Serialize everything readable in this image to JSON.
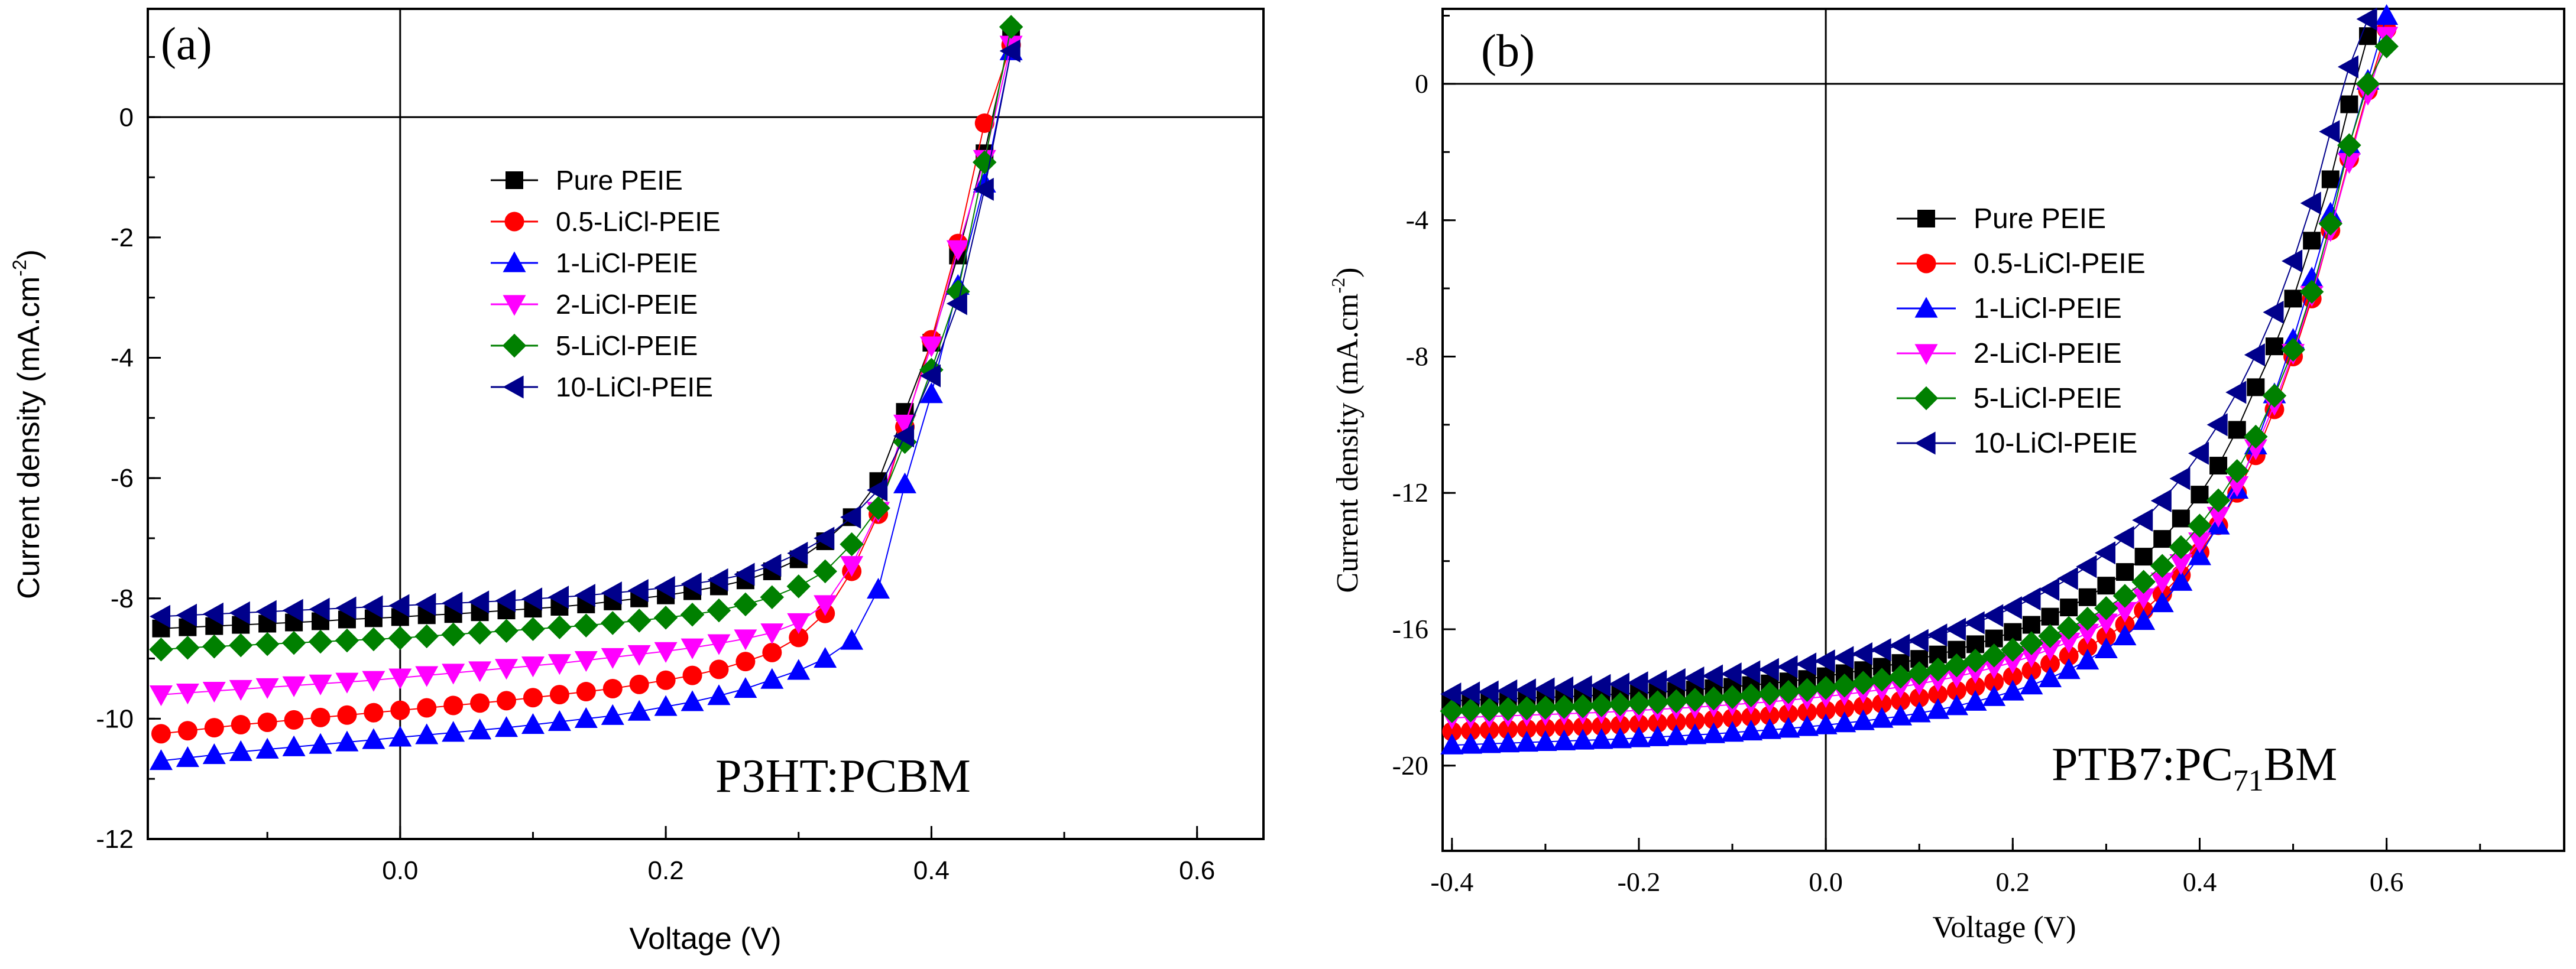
{
  "chart_data": [
    {
      "type": "line",
      "panel_label": "(a)",
      "annotation": "P3HT:PCBM",
      "xlabel": "Voltage (V)",
      "ylabel": "Current density (mA.cm",
      "ylabel_sup": "-2",
      "ylabel_close": ")",
      "xlim": [
        -0.19,
        0.65
      ],
      "ylim": [
        -12,
        1.8
      ],
      "xticks": [
        0.0,
        0.2,
        0.4,
        0.6
      ],
      "xtick_labels": [
        "0.0",
        "0.2",
        "0.4",
        "0.6"
      ],
      "yticks": [
        0,
        -2,
        -4,
        -6,
        -8,
        -10,
        -12
      ],
      "ytick_labels": [
        "0",
        "-2",
        "-4",
        "-6",
        "-8",
        "-10",
        "-12"
      ],
      "x_start": -0.18,
      "x_step": 0.02,
      "series": [
        {
          "name": "Pure PEIE",
          "marker": "square",
          "color": "#000000",
          "values": [
            -8.5,
            -8.48,
            -8.46,
            -8.44,
            -8.42,
            -8.4,
            -8.38,
            -8.35,
            -8.33,
            -8.31,
            -8.28,
            -8.26,
            -8.23,
            -8.2,
            -8.17,
            -8.14,
            -8.1,
            -8.05,
            -8.0,
            -7.95,
            -7.88,
            -7.8,
            -7.7,
            -7.55,
            -7.35,
            -7.05,
            -6.65,
            -6.05,
            -4.9,
            -3.75,
            -2.3,
            -0.6,
            1.4
          ]
        },
        {
          "name": "0.5-LiCl-PEIE",
          "marker": "circle",
          "color": "#ff0000",
          "values": [
            -10.25,
            -10.2,
            -10.15,
            -10.1,
            -10.06,
            -10.02,
            -9.98,
            -9.94,
            -9.9,
            -9.86,
            -9.82,
            -9.78,
            -9.74,
            -9.7,
            -9.65,
            -9.6,
            -9.55,
            -9.5,
            -9.43,
            -9.36,
            -9.28,
            -9.18,
            -9.05,
            -8.9,
            -8.65,
            -8.25,
            -7.55,
            -6.6,
            -5.15,
            -3.7,
            -2.1,
            -0.1,
            1.2
          ]
        },
        {
          "name": "1-LiCl-PEIE",
          "marker": "tri-up",
          "color": "#0000ff",
          "values": [
            -10.7,
            -10.65,
            -10.6,
            -10.55,
            -10.51,
            -10.47,
            -10.43,
            -10.39,
            -10.35,
            -10.31,
            -10.27,
            -10.23,
            -10.19,
            -10.15,
            -10.1,
            -10.05,
            -10.0,
            -9.95,
            -9.88,
            -9.8,
            -9.72,
            -9.62,
            -9.5,
            -9.35,
            -9.2,
            -9.0,
            -8.7,
            -7.85,
            -6.1,
            -4.6,
            -2.8,
            -1.1,
            1.1
          ]
        },
        {
          "name": "2-LiCl-PEIE",
          "marker": "tri-down",
          "color": "#ff00ff",
          "values": [
            -9.6,
            -9.57,
            -9.54,
            -9.51,
            -9.48,
            -9.45,
            -9.42,
            -9.39,
            -9.36,
            -9.32,
            -9.28,
            -9.24,
            -9.2,
            -9.16,
            -9.12,
            -9.08,
            -9.03,
            -8.98,
            -8.93,
            -8.88,
            -8.82,
            -8.75,
            -8.67,
            -8.57,
            -8.4,
            -8.1,
            -7.45,
            -6.55,
            -5.1,
            -3.8,
            -2.2,
            -0.7,
            1.2
          ]
        },
        {
          "name": "5-LiCl-PEIE",
          "marker": "diamond",
          "color": "#008000",
          "values": [
            -8.85,
            -8.82,
            -8.8,
            -8.78,
            -8.76,
            -8.74,
            -8.72,
            -8.7,
            -8.68,
            -8.66,
            -8.63,
            -8.6,
            -8.57,
            -8.54,
            -8.51,
            -8.48,
            -8.45,
            -8.41,
            -8.37,
            -8.32,
            -8.27,
            -8.2,
            -8.1,
            -7.98,
            -7.8,
            -7.55,
            -7.1,
            -6.5,
            -5.4,
            -4.2,
            -2.9,
            -0.75,
            1.5
          ]
        },
        {
          "name": "10-LiCl-PEIE",
          "marker": "tri-left",
          "color": "#00008b",
          "values": [
            -8.3,
            -8.28,
            -8.26,
            -8.24,
            -8.22,
            -8.2,
            -8.18,
            -8.16,
            -8.14,
            -8.12,
            -8.1,
            -8.08,
            -8.06,
            -8.04,
            -8.01,
            -7.98,
            -7.95,
            -7.91,
            -7.87,
            -7.82,
            -7.76,
            -7.69,
            -7.6,
            -7.45,
            -7.25,
            -7.0,
            -6.65,
            -6.2,
            -5.3,
            -4.3,
            -3.1,
            -1.2,
            1.1
          ]
        }
      ]
    },
    {
      "type": "line",
      "panel_label": "(b)",
      "annotation_main": "PTB7:PC",
      "annotation_sub": "71",
      "annotation_tail": "BM",
      "xlabel": "Voltage (V)",
      "ylabel": "Current density (mA.cm",
      "ylabel_sup": "-2",
      "ylabel_close": ")",
      "xlim": [
        -0.41,
        0.79
      ],
      "ylim": [
        -22.5,
        2.2
      ],
      "xticks": [
        -0.4,
        -0.2,
        0.0,
        0.2,
        0.4,
        0.6
      ],
      "xtick_labels": [
        "-0.4",
        "-0.2",
        "0.0",
        "0.2",
        "0.4",
        "0.6"
      ],
      "yticks": [
        0,
        -4,
        -8,
        -12,
        -16,
        -20
      ],
      "ytick_labels": [
        "0",
        "-4",
        "-8",
        "-12",
        "-16",
        "-20"
      ],
      "x_start": -0.4,
      "x_step": 0.02,
      "series": [
        {
          "name": "Pure PEIE",
          "marker": "square",
          "color": "#000000",
          "values": [
            -18.1,
            -18.08,
            -18.06,
            -18.04,
            -18.02,
            -18.0,
            -17.98,
            -17.96,
            -17.93,
            -17.9,
            -17.87,
            -17.84,
            -17.81,
            -17.77,
            -17.73,
            -17.69,
            -17.64,
            -17.59,
            -17.53,
            -17.46,
            -17.38,
            -17.29,
            -17.2,
            -17.1,
            -16.99,
            -16.87,
            -16.74,
            -16.6,
            -16.44,
            -16.27,
            -16.08,
            -15.87,
            -15.63,
            -15.36,
            -15.06,
            -14.72,
            -14.32,
            -13.87,
            -13.35,
            -12.75,
            -12.05,
            -11.2,
            -10.15,
            -8.9,
            -7.7,
            -6.3,
            -4.6,
            -2.8,
            -0.6,
            1.4,
            2.4
          ]
        },
        {
          "name": "0.5-LiCl-PEIE",
          "marker": "circle",
          "color": "#ff0000",
          "values": [
            -19.0,
            -18.98,
            -18.96,
            -18.94,
            -18.92,
            -18.9,
            -18.88,
            -18.86,
            -18.84,
            -18.81,
            -18.78,
            -18.75,
            -18.72,
            -18.69,
            -18.65,
            -18.61,
            -18.57,
            -18.53,
            -18.48,
            -18.43,
            -18.38,
            -18.32,
            -18.25,
            -18.18,
            -18.1,
            -18.01,
            -17.91,
            -17.8,
            -17.68,
            -17.54,
            -17.38,
            -17.21,
            -17.01,
            -16.78,
            -16.52,
            -16.21,
            -15.86,
            -15.45,
            -14.97,
            -14.41,
            -13.74,
            -12.95,
            -12.0,
            -10.9,
            -9.55,
            -8.0,
            -6.3,
            -4.3,
            -2.2,
            -0.2,
            1.6
          ]
        },
        {
          "name": "1-LiCl-PEIE",
          "marker": "tri-up",
          "color": "#0000ff",
          "values": [
            -19.4,
            -19.38,
            -19.36,
            -19.34,
            -19.32,
            -19.3,
            -19.28,
            -19.26,
            -19.24,
            -19.22,
            -19.19,
            -19.16,
            -19.13,
            -19.1,
            -19.07,
            -19.03,
            -18.99,
            -18.95,
            -18.91,
            -18.86,
            -18.81,
            -18.75,
            -18.69,
            -18.62,
            -18.55,
            -18.46,
            -18.36,
            -18.25,
            -18.12,
            -17.98,
            -17.82,
            -17.64,
            -17.43,
            -17.19,
            -16.91,
            -16.58,
            -16.2,
            -15.75,
            -15.23,
            -14.6,
            -13.85,
            -12.95,
            -11.9,
            -10.6,
            -9.1,
            -7.5,
            -5.7,
            -3.8,
            -1.8,
            0.1,
            2.0
          ]
        },
        {
          "name": "2-LiCl-PEIE",
          "marker": "tri-down",
          "color": "#ff00ff",
          "values": [
            -18.6,
            -18.58,
            -18.56,
            -18.54,
            -18.52,
            -18.5,
            -18.48,
            -18.46,
            -18.44,
            -18.41,
            -18.38,
            -18.35,
            -18.32,
            -18.29,
            -18.25,
            -18.21,
            -18.17,
            -18.13,
            -18.08,
            -18.03,
            -17.97,
            -17.91,
            -17.84,
            -17.77,
            -17.69,
            -17.6,
            -17.5,
            -17.39,
            -17.26,
            -17.12,
            -16.97,
            -16.79,
            -16.59,
            -16.37,
            -16.11,
            -15.81,
            -15.47,
            -15.07,
            -14.61,
            -14.07,
            -13.43,
            -12.68,
            -11.78,
            -10.7,
            -9.4,
            -7.9,
            -6.2,
            -4.3,
            -2.3,
            -0.3,
            1.4
          ]
        },
        {
          "name": "5-LiCl-PEIE",
          "marker": "diamond",
          "color": "#008000",
          "values": [
            -18.4,
            -18.38,
            -18.36,
            -18.34,
            -18.32,
            -18.3,
            -18.28,
            -18.26,
            -18.23,
            -18.2,
            -18.17,
            -18.14,
            -18.11,
            -18.07,
            -18.03,
            -17.99,
            -17.94,
            -17.89,
            -17.84,
            -17.78,
            -17.72,
            -17.65,
            -17.57,
            -17.48,
            -17.39,
            -17.29,
            -17.18,
            -17.06,
            -16.92,
            -16.77,
            -16.6,
            -16.41,
            -16.2,
            -15.96,
            -15.69,
            -15.38,
            -15.02,
            -14.61,
            -14.14,
            -13.59,
            -12.96,
            -12.22,
            -11.36,
            -10.35,
            -9.15,
            -7.8,
            -6.1,
            -4.1,
            -1.8,
            0.0,
            1.1
          ]
        },
        {
          "name": "10-LiCl-PEIE",
          "marker": "tri-left",
          "color": "#00008b",
          "values": [
            -17.9,
            -17.87,
            -17.84,
            -17.81,
            -17.78,
            -17.75,
            -17.72,
            -17.69,
            -17.65,
            -17.61,
            -17.57,
            -17.53,
            -17.48,
            -17.43,
            -17.37,
            -17.31,
            -17.25,
            -17.18,
            -17.1,
            -17.02,
            -16.93,
            -16.83,
            -16.72,
            -16.6,
            -16.47,
            -16.33,
            -16.17,
            -16.0,
            -15.81,
            -15.6,
            -15.37,
            -15.11,
            -14.83,
            -14.51,
            -14.16,
            -13.76,
            -13.31,
            -12.8,
            -12.23,
            -11.58,
            -10.84,
            -10.0,
            -9.05,
            -7.95,
            -6.7,
            -5.2,
            -3.5,
            -1.4,
            0.5,
            1.9,
            2.4
          ]
        }
      ]
    }
  ]
}
